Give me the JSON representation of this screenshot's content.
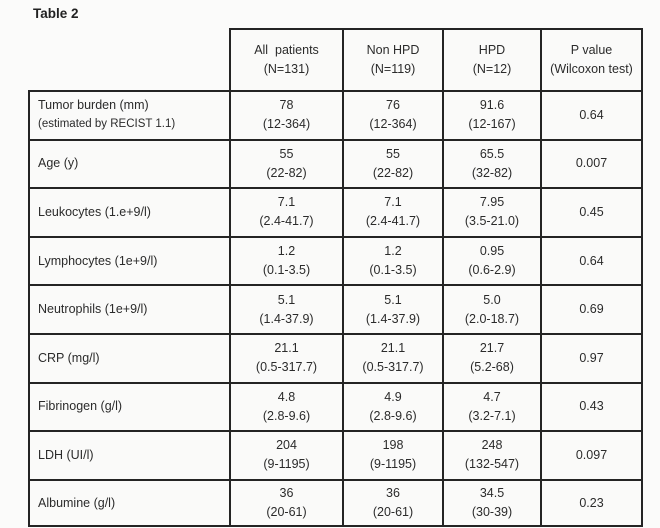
{
  "title": "Table 2",
  "table": {
    "columns": [
      {
        "line1": "All  patients",
        "line2": "(N=131)"
      },
      {
        "line1": "Non HPD",
        "line2": "(N=119)"
      },
      {
        "line1": "HPD",
        "line2": "(N=12)"
      },
      {
        "line1": "P value",
        "line2": "(Wilcoxon test)"
      }
    ],
    "rows": [
      {
        "label": "Tumor burden (mm)",
        "label2": "(estimated by RECIST 1.1)",
        "all": "78",
        "all_range": "(12-364)",
        "non": "76",
        "non_range": "(12-364)",
        "hpd": "91.6",
        "hpd_range": "(12-167)",
        "p": "0.64"
      },
      {
        "label": "Age (y)",
        "all": "55",
        "all_range": "(22-82)",
        "non": "55",
        "non_range": "(22-82)",
        "hpd": "65.5",
        "hpd_range": "(32-82)",
        "p": "0.007"
      },
      {
        "label": "Leukocytes (1.e+9/l)",
        "all": "7.1",
        "all_range": "(2.4-41.7)",
        "non": "7.1",
        "non_range": "(2.4-41.7)",
        "hpd": "7.95",
        "hpd_range": "(3.5-21.0)",
        "p": "0.45"
      },
      {
        "label": "Lymphocytes (1e+9/l)",
        "all": "1.2",
        "all_range": "(0.1-3.5)",
        "non": "1.2",
        "non_range": "(0.1-3.5)",
        "hpd": "0.95",
        "hpd_range": "(0.6-2.9)",
        "p": "0.64"
      },
      {
        "label": "Neutrophils (1e+9/l)",
        "all": "5.1",
        "all_range": "(1.4-37.9)",
        "non": "5.1",
        "non_range": "(1.4-37.9)",
        "hpd": "5.0",
        "hpd_range": "(2.0-18.7)",
        "p": "0.69"
      },
      {
        "label": "CRP (mg/l)",
        "all": "21.1",
        "all_range": "(0.5-317.7)",
        "non": "21.1",
        "non_range": "(0.5-317.7)",
        "hpd": "21.7",
        "hpd_range": "(5.2-68)",
        "p": "0.97"
      },
      {
        "label": "Fibrinogen (g/l)",
        "all": "4.8",
        "all_range": "(2.8-9.6)",
        "non": "4.9",
        "non_range": "(2.8-9.6)",
        "hpd": "4.7",
        "hpd_range": "(3.2-7.1)",
        "p": "0.43"
      },
      {
        "label": "LDH (UI/l)",
        "all": "204",
        "all_range": "(9-1195)",
        "non": "198",
        "non_range": "(9-1195)",
        "hpd": "248",
        "hpd_range": "(132-547)",
        "p": "0.097"
      },
      {
        "label": "Albumine (g/l)",
        "all": "36",
        "all_range": "(20-61)",
        "non": "36",
        "non_range": "(20-61)",
        "hpd": "34.5",
        "hpd_range": "(30-39)",
        "p": "0.23"
      }
    ]
  }
}
